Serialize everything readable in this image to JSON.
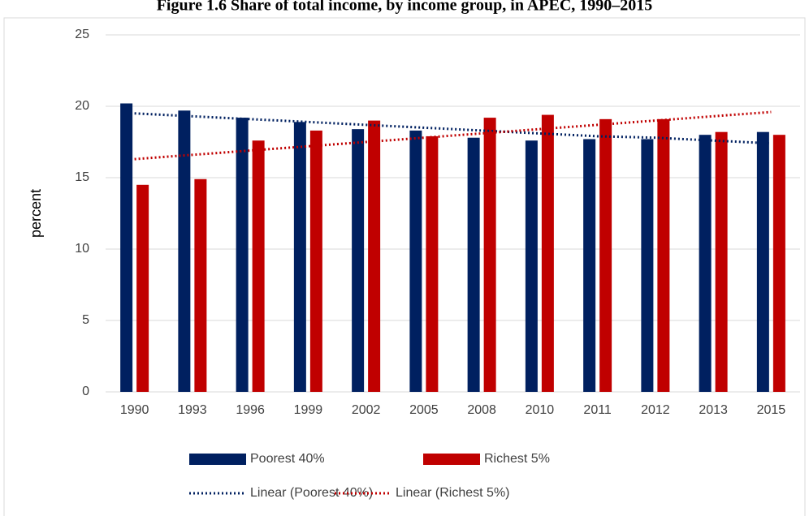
{
  "chart_data": {
    "type": "bar",
    "title": "Figure 1.6 Share of total income, by income group, in APEC, 1990–2015",
    "y_label": "percent",
    "categories": [
      "1990",
      "1993",
      "1996",
      "1999",
      "2002",
      "2005",
      "2008",
      "2010",
      "2011",
      "2012",
      "2013",
      "2015"
    ],
    "series": [
      {
        "name": "Poorest 40%",
        "color": "#002060",
        "type": "bar",
        "values": [
          20.2,
          19.7,
          19.2,
          18.9,
          18.4,
          18.3,
          17.8,
          17.6,
          17.7,
          17.7,
          18.0,
          18.2
        ]
      },
      {
        "name": "Richest 5%",
        "color": "#c00000",
        "type": "bar",
        "values": [
          14.5,
          14.9,
          17.6,
          18.3,
          19.0,
          17.9,
          19.2,
          19.4,
          19.1,
          19.1,
          18.2,
          18.0
        ]
      },
      {
        "name": "Linear (Poorest 40%)",
        "color": "#002060",
        "type": "line",
        "dotted": true,
        "values": [
          19.5,
          19.3,
          19.1,
          18.9,
          18.7,
          18.5,
          18.3,
          18.1,
          17.9,
          17.8,
          17.6,
          17.4
        ]
      },
      {
        "name": "Linear (Richest 5%)",
        "color": "#c00000",
        "type": "line",
        "dotted": true,
        "values": [
          16.3,
          16.6,
          16.9,
          17.2,
          17.5,
          17.8,
          18.1,
          18.4,
          18.7,
          19.0,
          19.3,
          19.6
        ]
      }
    ],
    "ylim": [
      0,
      25
    ],
    "yticks": [
      0,
      5,
      10,
      15,
      20,
      25
    ],
    "grid": true,
    "legend": "bottom"
  }
}
